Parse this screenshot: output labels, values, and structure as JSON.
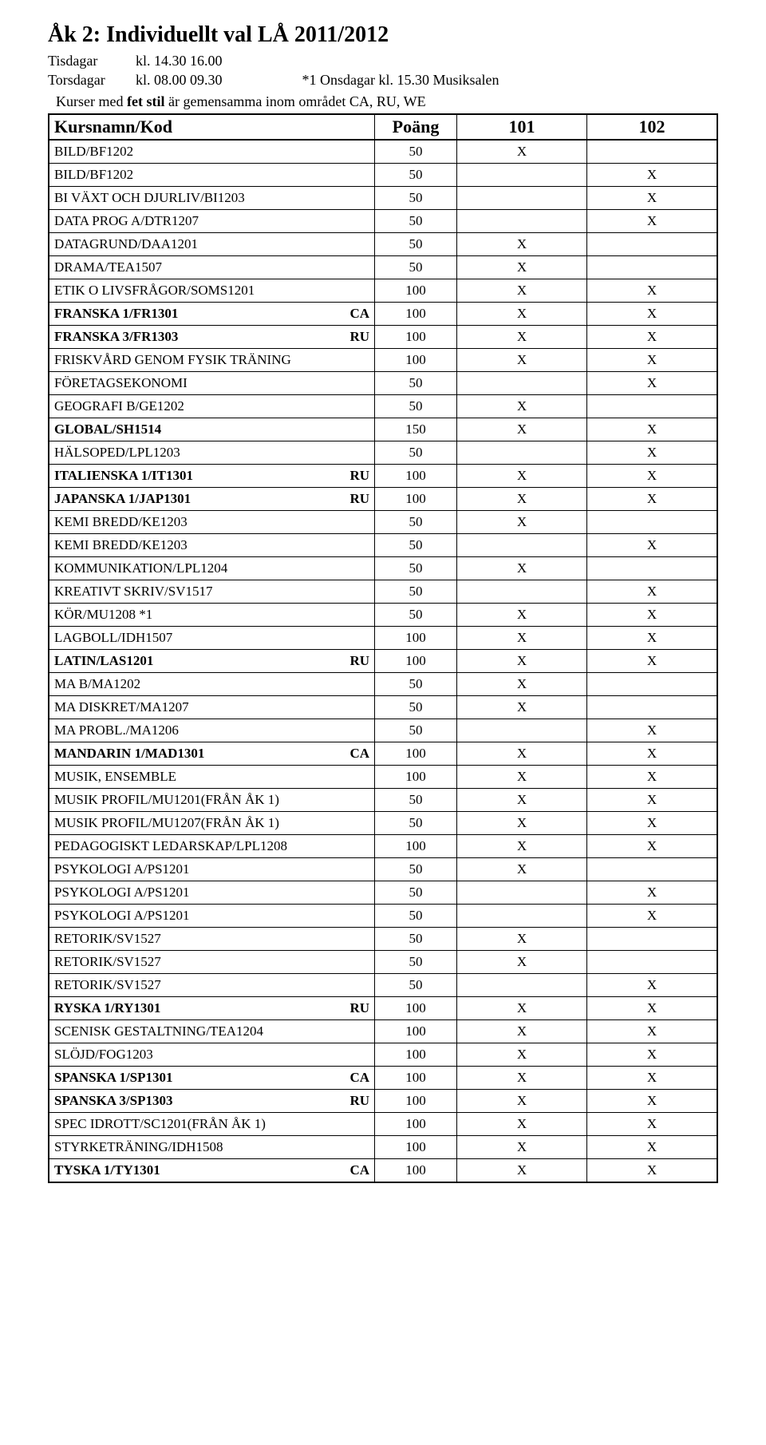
{
  "title": "Åk 2: Individuellt val LÅ 2011/2012",
  "schedule": [
    {
      "day": "Tisdagar",
      "time": "kl. 14.30 16.00",
      "note": ""
    },
    {
      "day": "Torsdagar",
      "time": "kl. 08.00 09.30",
      "note": "*1 Onsdagar kl. 15.30 Musiksalen"
    }
  ],
  "subnote_a": "Kurser med ",
  "subnote_b": "fet stil",
  "subnote_c": " är gemensamma inom området CA, RU, WE",
  "headers": {
    "kurs": "Kursnamn/Kod",
    "poang": "Poäng",
    "c101": "101",
    "c102": "102"
  },
  "rows": [
    {
      "name": "BILD/BF1202",
      "tag": "",
      "bold": false,
      "pts": "50",
      "c101": "X",
      "c102": ""
    },
    {
      "name": "BILD/BF1202",
      "tag": "",
      "bold": false,
      "pts": "50",
      "c101": "",
      "c102": "X"
    },
    {
      "name": "BI VÄXT OCH DJURLIV/BI1203",
      "tag": "",
      "bold": false,
      "pts": "50",
      "c101": "",
      "c102": "X"
    },
    {
      "name": "DATA PROG A/DTR1207",
      "tag": "",
      "bold": false,
      "pts": "50",
      "c101": "",
      "c102": "X"
    },
    {
      "name": "DATAGRUND/DAA1201",
      "tag": "",
      "bold": false,
      "pts": "50",
      "c101": "X",
      "c102": ""
    },
    {
      "name": "DRAMA/TEA1507",
      "tag": "",
      "bold": false,
      "pts": "50",
      "c101": "X",
      "c102": ""
    },
    {
      "name": "ETIK O LIVSFRÅGOR/SOMS1201",
      "tag": "",
      "bold": false,
      "pts": "100",
      "c101": "X",
      "c102": "X"
    },
    {
      "name": "FRANSKA 1/FR1301",
      "tag": "CA",
      "bold": true,
      "pts": "100",
      "c101": "X",
      "c102": "X"
    },
    {
      "name": "FRANSKA 3/FR1303",
      "tag": "RU",
      "bold": true,
      "pts": "100",
      "c101": "X",
      "c102": "X"
    },
    {
      "name": "FRISKVÅRD GENOM FYSIK TRÄNING",
      "tag": "",
      "bold": false,
      "pts": "100",
      "c101": "X",
      "c102": "X"
    },
    {
      "name": "FÖRETAGSEKONOMI",
      "tag": "",
      "bold": false,
      "pts": "50",
      "c101": "",
      "c102": "X"
    },
    {
      "name": "GEOGRAFI B/GE1202",
      "tag": "",
      "bold": false,
      "pts": "50",
      "c101": "X",
      "c102": ""
    },
    {
      "name": "GLOBAL/SH1514",
      "tag": "",
      "bold": true,
      "pts": "150",
      "c101": "X",
      "c102": "X"
    },
    {
      "name": "HÄLSOPED/LPL1203",
      "tag": "",
      "bold": false,
      "pts": "50",
      "c101": "",
      "c102": "X"
    },
    {
      "name": "ITALIENSKA 1/IT1301",
      "tag": "RU",
      "bold": true,
      "pts": "100",
      "c101": "X",
      "c102": "X"
    },
    {
      "name": "JAPANSKA 1/JAP1301",
      "tag": "RU",
      "bold": true,
      "pts": "100",
      "c101": "X",
      "c102": "X"
    },
    {
      "name": "KEMI BREDD/KE1203",
      "tag": "",
      "bold": false,
      "pts": "50",
      "c101": "X",
      "c102": ""
    },
    {
      "name": "KEMI BREDD/KE1203",
      "tag": "",
      "bold": false,
      "pts": "50",
      "c101": "",
      "c102": "X"
    },
    {
      "name": "KOMMUNIKATION/LPL1204",
      "tag": "",
      "bold": false,
      "pts": "50",
      "c101": "X",
      "c102": ""
    },
    {
      "name": "KREATIVT SKRIV/SV1517",
      "tag": "",
      "bold": false,
      "pts": "50",
      "c101": "",
      "c102": "X"
    },
    {
      "name": "KÖR/MU1208 *1",
      "tag": "",
      "bold": false,
      "pts": "50",
      "c101": "X",
      "c102": "X"
    },
    {
      "name": "LAGBOLL/IDH1507",
      "tag": "",
      "bold": false,
      "pts": "100",
      "c101": "X",
      "c102": "X"
    },
    {
      "name": "LATIN/LAS1201",
      "tag": "RU",
      "bold": true,
      "pts": "100",
      "c101": "X",
      "c102": "X"
    },
    {
      "name": "MA B/MA1202",
      "tag": "",
      "bold": false,
      "pts": "50",
      "c101": "X",
      "c102": ""
    },
    {
      "name": "MA DISKRET/MA1207",
      "tag": "",
      "bold": false,
      "pts": "50",
      "c101": "X",
      "c102": ""
    },
    {
      "name": "MA PROBL./MA1206",
      "tag": "",
      "bold": false,
      "pts": "50",
      "c101": "",
      "c102": "X"
    },
    {
      "name": "MANDARIN 1/MAD1301",
      "tag": "CA",
      "bold": true,
      "pts": "100",
      "c101": "X",
      "c102": "X"
    },
    {
      "name": "MUSIK, ENSEMBLE",
      "tag": "",
      "bold": false,
      "pts": "100",
      "c101": "X",
      "c102": "X"
    },
    {
      "name": "MUSIK PROFIL/MU1201(FRÅN ÅK 1)",
      "tag": "",
      "bold": false,
      "pts": "50",
      "c101": "X",
      "c102": "X"
    },
    {
      "name": "MUSIK PROFIL/MU1207(FRÅN ÅK 1)",
      "tag": "",
      "bold": false,
      "pts": "50",
      "c101": "X",
      "c102": "X"
    },
    {
      "name": "PEDAGOGISKT LEDARSKAP/LPL1208",
      "tag": "",
      "bold": false,
      "pts": "100",
      "c101": "X",
      "c102": "X"
    },
    {
      "name": "PSYKOLOGI A/PS1201",
      "tag": "",
      "bold": false,
      "pts": "50",
      "c101": "X",
      "c102": ""
    },
    {
      "name": "PSYKOLOGI A/PS1201",
      "tag": "",
      "bold": false,
      "pts": "50",
      "c101": "",
      "c102": "X"
    },
    {
      "name": "PSYKOLOGI A/PS1201",
      "tag": "",
      "bold": false,
      "pts": "50",
      "c101": "",
      "c102": "X"
    },
    {
      "name": "RETORIK/SV1527",
      "tag": "",
      "bold": false,
      "pts": "50",
      "c101": "X",
      "c102": ""
    },
    {
      "name": "RETORIK/SV1527",
      "tag": "",
      "bold": false,
      "pts": "50",
      "c101": "X",
      "c102": ""
    },
    {
      "name": "RETORIK/SV1527",
      "tag": "",
      "bold": false,
      "pts": "50",
      "c101": "",
      "c102": "X"
    },
    {
      "name": "RYSKA 1/RY1301",
      "tag": "RU",
      "bold": true,
      "pts": "100",
      "c101": "X",
      "c102": "X"
    },
    {
      "name": "SCENISK GESTALTNING/TEA1204",
      "tag": "",
      "bold": false,
      "pts": "100",
      "c101": "X",
      "c102": "X"
    },
    {
      "name": "SLÖJD/FOG1203",
      "tag": "",
      "bold": false,
      "pts": "100",
      "c101": "X",
      "c102": "X"
    },
    {
      "name": "SPANSKA 1/SP1301",
      "tag": "CA",
      "bold": true,
      "pts": "100",
      "c101": "X",
      "c102": "X"
    },
    {
      "name": "SPANSKA 3/SP1303",
      "tag": "RU",
      "bold": true,
      "pts": "100",
      "c101": "X",
      "c102": "X"
    },
    {
      "name": "SPEC IDROTT/SC1201(FRÅN ÅK 1)",
      "tag": "",
      "bold": false,
      "pts": "100",
      "c101": "X",
      "c102": "X"
    },
    {
      "name": "STYRKETRÄNING/IDH1508",
      "tag": "",
      "bold": false,
      "pts": "100",
      "c101": "X",
      "c102": "X"
    },
    {
      "name": "TYSKA 1/TY1301",
      "tag": "CA",
      "bold": true,
      "pts": "100",
      "c101": "X",
      "c102": "X"
    }
  ]
}
